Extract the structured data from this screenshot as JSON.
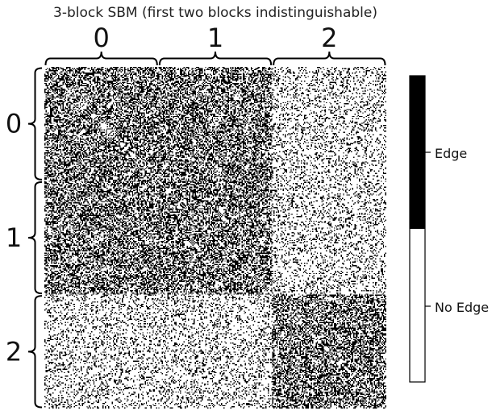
{
  "chart_data": {
    "type": "heatmap",
    "title": "3-block SBM (first two blocks indistinguishable)",
    "blocks": [
      "0",
      "1",
      "2"
    ],
    "block_sizes": [
      100,
      100,
      100
    ],
    "block_probabilities": [
      [
        0.5,
        0.5,
        0.2
      ],
      [
        0.5,
        0.5,
        0.2
      ],
      [
        0.2,
        0.2,
        0.5
      ]
    ],
    "colorbar": {
      "labels": [
        "Edge",
        "No Edge"
      ],
      "colors": [
        "#000000",
        "#ffffff"
      ]
    }
  }
}
